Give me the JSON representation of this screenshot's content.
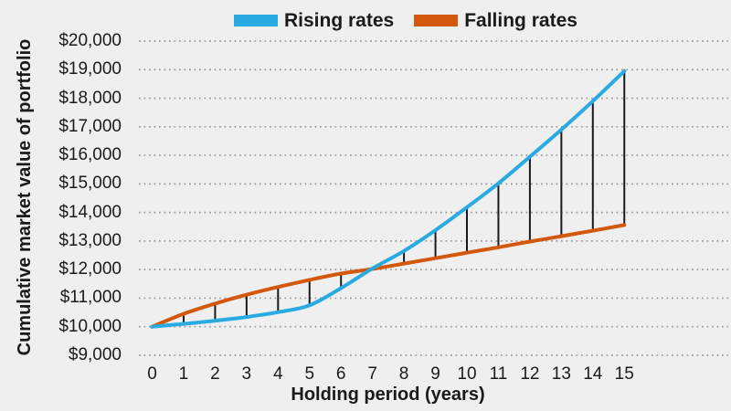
{
  "colors": {
    "background": "#EFEFEF",
    "text": "#1A1A1A",
    "grid": "#999999",
    "hatch": "#1A1A1A",
    "rising": "#29ABE2",
    "falling": "#D3570C"
  },
  "chart_data": {
    "type": "line",
    "title": "",
    "xlabel": "Holding period (years)",
    "ylabel": "Cumulative market value of portfolio",
    "x": [
      0,
      1,
      2,
      3,
      4,
      5,
      6,
      7,
      8,
      9,
      10,
      11,
      12,
      13,
      14,
      15
    ],
    "xtick_labels": [
      "0",
      "1",
      "2",
      "3",
      "4",
      "5",
      "6",
      "7",
      "8",
      "9",
      "10",
      "11",
      "12",
      "13",
      "14",
      "15"
    ],
    "ytick_values": [
      20000,
      19000,
      18000,
      17000,
      16000,
      15000,
      14000,
      13000,
      12000,
      11000,
      10000,
      9000
    ],
    "ytick_labels": [
      "$20,000",
      "$19,000",
      "$18,000",
      "$17,000",
      "$16,000",
      "$15,000",
      "$14,000",
      "$13,000",
      "$12,000",
      "$11,000",
      "$10,000",
      "$9,000"
    ],
    "ylim": [
      9000,
      20000
    ],
    "xlim": [
      0,
      15
    ],
    "grid": "dotted-horizontal",
    "legend_position": "top-center",
    "series": [
      {
        "name": "Rising rates",
        "color": "#29ABE2",
        "values": [
          10000,
          10100,
          10210,
          10340,
          10510,
          10750,
          11350,
          12040,
          12650,
          13380,
          14180,
          15020,
          15950,
          16900,
          17900,
          18950
        ]
      },
      {
        "name": "Falling rates",
        "color": "#D3570C",
        "values": [
          10000,
          10450,
          10810,
          11120,
          11390,
          11640,
          11860,
          12020,
          12210,
          12400,
          12590,
          12780,
          12980,
          13170,
          13360,
          13560
        ]
      }
    ],
    "hatch": {
      "description": "vertical lines between the two series",
      "color": "#1A1A1A",
      "years": [
        1,
        2,
        3,
        4,
        5,
        6,
        8,
        9,
        10,
        11,
        12,
        13,
        14,
        15
      ]
    },
    "crossover_year": 7
  }
}
